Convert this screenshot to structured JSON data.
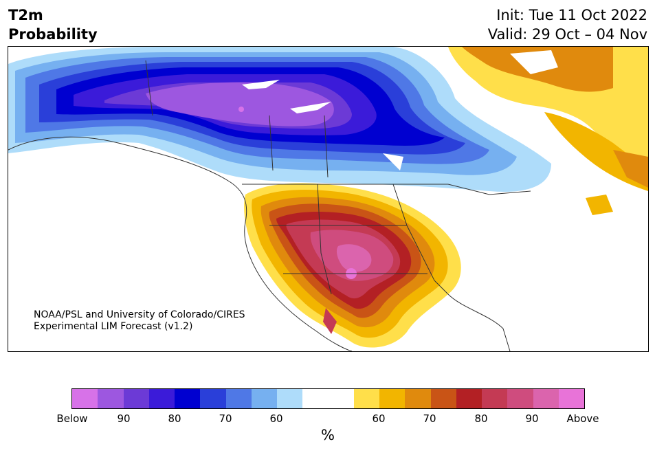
{
  "title": {
    "line1": "T2m",
    "line2": "Probability"
  },
  "dates": {
    "init": "Init: Tue 11 Oct 2022",
    "valid": "Valid: 29 Oct – 04 Nov"
  },
  "credit": {
    "line1": "NOAA/PSL and University of Colorado/CIRES",
    "line2": "Experimental LIM Forecast (v1.2)"
  },
  "colorbar": {
    "colors": [
      "#d772e8",
      "#9d57e0",
      "#6c3ad6",
      "#3b1bd9",
      "#0000d0",
      "#2a3fd9",
      "#4f78e6",
      "#76b0f0",
      "#aedcfa",
      "#ffffff",
      "#ffffff",
      "#ffdf4a",
      "#f2b500",
      "#e08a0d",
      "#c95416",
      "#b32024",
      "#c43a54",
      "#cf4c7e",
      "#db64ad",
      "#e873d8"
    ],
    "tick_labels": [
      "Below",
      "90",
      "80",
      "70",
      "60",
      "60",
      "70",
      "80",
      "90",
      "Above"
    ],
    "label": "%"
  },
  "map": {
    "below_color_cold": "#0000d0",
    "above_color_hot": "#b32024"
  }
}
